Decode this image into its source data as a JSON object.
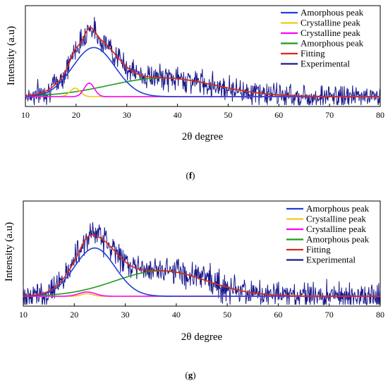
{
  "chart_data": [
    {
      "type": "line",
      "panel_label": "(f)",
      "xlabel": "2θ degree",
      "ylabel": "Intensity (a.u)",
      "xlim": [
        10,
        80
      ],
      "xticks": [
        "10",
        "20",
        "30",
        "40",
        "50",
        "60",
        "70",
        "80"
      ],
      "legend_position": "top-right",
      "series": [
        {
          "name": "Amorphous peak",
          "color": "#1f3fd9",
          "kind": "gaussian",
          "center": 23.5,
          "width": 4.2,
          "height": 0.58
        },
        {
          "name": "Crystalline peak",
          "color": "#f5c518",
          "kind": "gaussian",
          "center": 19.8,
          "width": 1.0,
          "height": 0.1
        },
        {
          "name": "Crystalline peak",
          "color": "#ff00ff",
          "kind": "gaussian",
          "center": 22.6,
          "width": 1.0,
          "height": 0.16
        },
        {
          "name": "Amorphous peak",
          "color": "#1f9a1f",
          "kind": "gaussian",
          "center": 37.0,
          "width": 10.5,
          "height": 0.22
        },
        {
          "name": "Fitting",
          "color": "#e0261a",
          "kind": "fit"
        },
        {
          "name": "Experimental",
          "color": "#1a1a8c",
          "kind": "noisy",
          "noise": 0.07
        }
      ]
    },
    {
      "type": "line",
      "panel_label": "(g)",
      "xlabel": "2θ degree",
      "ylabel": "Intensity (a.u)",
      "xlim": [
        10,
        80
      ],
      "xticks": [
        "10",
        "20",
        "30",
        "40",
        "50",
        "60",
        "70",
        "80"
      ],
      "legend_position": "top-right",
      "series": [
        {
          "name": "Amorphous peak",
          "color": "#1f3fd9",
          "kind": "gaussian",
          "center": 24.0,
          "width": 4.0,
          "height": 0.57
        },
        {
          "name": "Crystalline peak",
          "color": "#f5c518",
          "kind": "gaussian",
          "center": 22.5,
          "width": 1.1,
          "height": 0.03
        },
        {
          "name": "Crystalline peak",
          "color": "#ff00ff",
          "kind": "gaussian",
          "center": 22.5,
          "width": 1.6,
          "height": 0.05
        },
        {
          "name": "Amorphous peak",
          "color": "#1f9a1f",
          "kind": "gaussian",
          "center": 37.0,
          "width": 9.0,
          "height": 0.3
        },
        {
          "name": "Fitting",
          "color": "#e0261a",
          "kind": "fit"
        },
        {
          "name": "Experimental",
          "color": "#1a1a8c",
          "kind": "noisy",
          "noise": 0.08
        }
      ]
    }
  ]
}
